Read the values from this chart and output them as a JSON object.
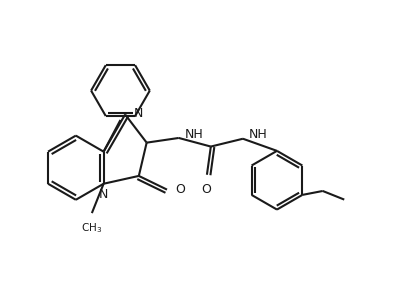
{
  "background_color": "#ffffff",
  "line_color": "#1a1a1a",
  "line_width": 1.5,
  "figsize": [
    4.06,
    3.08
  ],
  "dpi": 100,
  "xlim": [
    0,
    10.2
  ],
  "ylim": [
    0,
    7.8
  ]
}
